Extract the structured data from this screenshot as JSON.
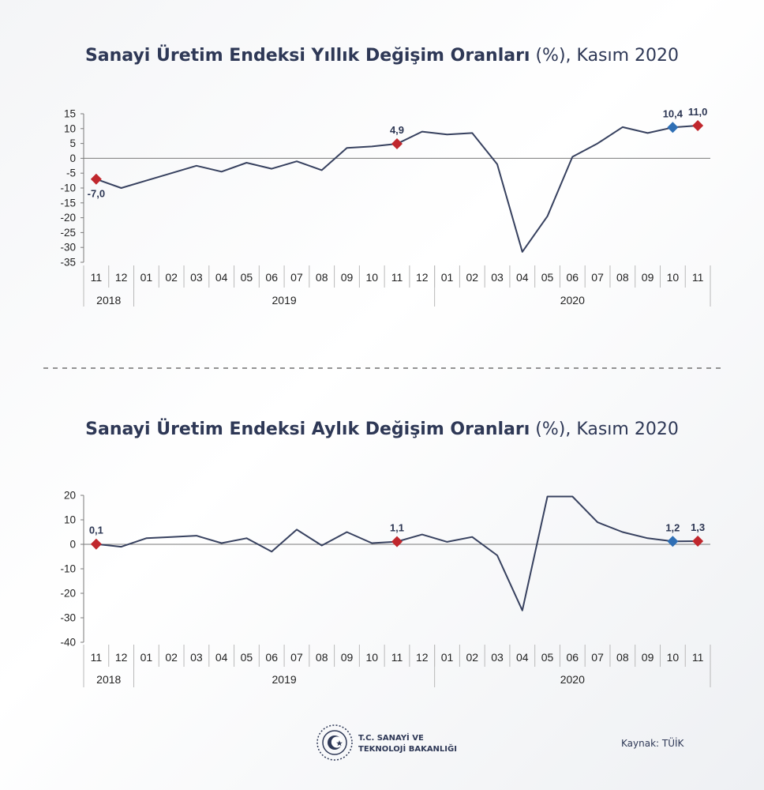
{
  "chart_data": [
    {
      "type": "line",
      "title_strong": "Sanayi Üretim Endeksi Yıllık Değişim Oranları",
      "title_rest": " (%), Kasım 2020",
      "xlabel": "",
      "ylabel": "",
      "ylim": [
        -35,
        15
      ],
      "yticks": [
        15,
        10,
        5,
        0,
        -5,
        -10,
        -15,
        -20,
        -25,
        -30,
        -35
      ],
      "categories": [
        "11",
        "12",
        "01",
        "02",
        "03",
        "04",
        "05",
        "06",
        "07",
        "08",
        "09",
        "10",
        "11",
        "12",
        "01",
        "02",
        "03",
        "04",
        "05",
        "06",
        "07",
        "08",
        "09",
        "10",
        "11"
      ],
      "years": [
        {
          "label": "2018",
          "start": 0,
          "end": 1
        },
        {
          "label": "2019",
          "start": 2,
          "end": 13
        },
        {
          "label": "2020",
          "start": 14,
          "end": 24
        }
      ],
      "values": [
        -7.0,
        -10.0,
        -7.5,
        -5.0,
        -2.5,
        -4.5,
        -1.5,
        -3.5,
        -1.0,
        -4.0,
        3.5,
        4.0,
        4.9,
        9.0,
        8.0,
        8.5,
        -2.0,
        -31.5,
        -19.5,
        0.5,
        5.0,
        10.5,
        8.5,
        10.4,
        11.0
      ],
      "markers": [
        {
          "index": 0,
          "label": "-7,0",
          "color": "#c0272d",
          "label_pos": "below"
        },
        {
          "index": 12,
          "label": "4,9",
          "color": "#c0272d",
          "label_pos": "above"
        },
        {
          "index": 23,
          "label": "10,4",
          "color": "#2f6fb5",
          "label_pos": "above"
        },
        {
          "index": 24,
          "label": "11,0",
          "color": "#c0272d",
          "label_pos": "above"
        }
      ],
      "grid": false
    },
    {
      "type": "line",
      "title_strong": "Sanayi Üretim Endeksi Aylık Değişim Oranları",
      "title_rest": " (%), Kasım 2020",
      "xlabel": "",
      "ylabel": "",
      "ylim": [
        -40,
        20
      ],
      "yticks": [
        20,
        10,
        0,
        -10,
        -20,
        -30,
        -40
      ],
      "categories": [
        "11",
        "12",
        "01",
        "02",
        "03",
        "04",
        "05",
        "06",
        "07",
        "08",
        "09",
        "10",
        "11",
        "12",
        "01",
        "02",
        "03",
        "04",
        "05",
        "06",
        "07",
        "08",
        "09",
        "10",
        "11"
      ],
      "years": [
        {
          "label": "2018",
          "start": 0,
          "end": 1
        },
        {
          "label": "2019",
          "start": 2,
          "end": 13
        },
        {
          "label": "2020",
          "start": 14,
          "end": 24
        }
      ],
      "values": [
        0.1,
        -1.0,
        2.5,
        3.0,
        3.5,
        0.5,
        2.5,
        -3.0,
        6.0,
        -0.5,
        5.0,
        0.5,
        1.1,
        4.0,
        1.0,
        3.0,
        -4.5,
        -27.0,
        19.5,
        19.5,
        9.0,
        5.0,
        2.5,
        1.2,
        1.3
      ],
      "markers": [
        {
          "index": 0,
          "label": "0,1",
          "color": "#c0272d",
          "label_pos": "above"
        },
        {
          "index": 12,
          "label": "1,1",
          "color": "#c0272d",
          "label_pos": "above"
        },
        {
          "index": 23,
          "label": "1,2",
          "color": "#2f6fb5",
          "label_pos": "above"
        },
        {
          "index": 24,
          "label": "1,3",
          "color": "#c0272d",
          "label_pos": "above"
        }
      ],
      "grid": false
    }
  ],
  "footer": {
    "org_line1": "T.C. SANAYİ VE",
    "org_line2": "TEKNOLOJİ BAKANLIĞI",
    "source": "Kaynak: TÜİK",
    "logo_icon": "ministry-seal-icon"
  },
  "colors": {
    "series": "#37415f",
    "highlight_red": "#c0272d",
    "highlight_blue": "#2f6fb5",
    "title": "#2e3856"
  }
}
